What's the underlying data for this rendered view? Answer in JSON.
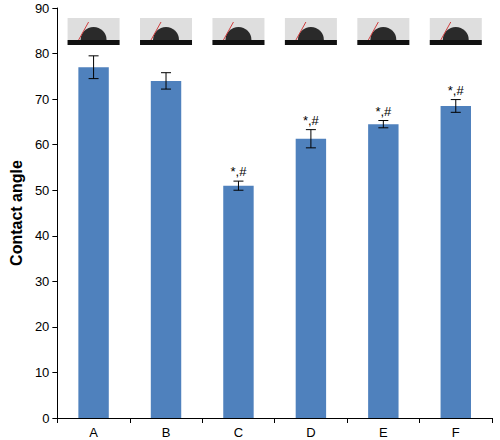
{
  "chart_data": {
    "type": "bar",
    "y_label": "Contact angle",
    "categories": [
      "A",
      "B",
      "C",
      "D",
      "E",
      "F"
    ],
    "values": [
      77,
      74,
      51,
      61.3,
      64.5,
      68.5
    ],
    "errors": [
      2.5,
      1.8,
      1.0,
      2.0,
      0.8,
      1.4
    ],
    "annotations": [
      {
        "category": "C",
        "text": "*,#"
      },
      {
        "category": "D",
        "text": "*,#"
      },
      {
        "category": "E",
        "text": "*,#"
      },
      {
        "category": "F",
        "text": "*,#"
      }
    ],
    "color": "#4f81bd",
    "ylim": [
      0,
      90
    ],
    "yticks": [
      0,
      10,
      20,
      30,
      40,
      50,
      60,
      70,
      80,
      90
    ],
    "grid": false
  }
}
